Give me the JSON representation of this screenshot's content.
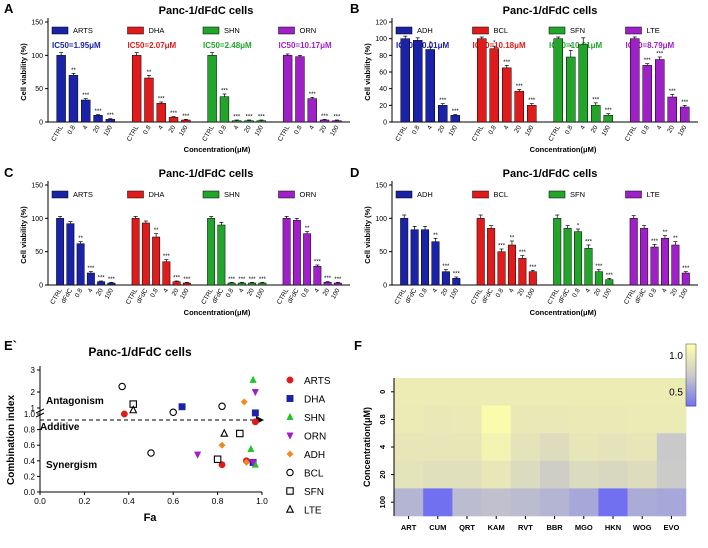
{
  "chart_data": [
    {
      "panel": "A",
      "type": "bar",
      "title": "Panc-1/dFdC cells",
      "ylabel": "Cell viability (%)",
      "xlabel": "Concentration(μM)",
      "ylim": [
        0,
        150
      ],
      "yticks": [
        0,
        50,
        100,
        150
      ],
      "groups": [
        {
          "name": "ARTS",
          "color": "#1a22a8",
          "ic50": "IC50=1.95μM",
          "categories": [
            "CTRL",
            "0.8",
            "4",
            "20",
            "100"
          ],
          "values": [
            100,
            70,
            33,
            10,
            4
          ],
          "errors": [
            4,
            3,
            2,
            1,
            1
          ],
          "sig": [
            "",
            "**",
            "***",
            "***",
            "***"
          ]
        },
        {
          "name": "DHA",
          "color": "#e01b1b",
          "ic50": "IC50=2.07μM",
          "categories": [
            "CTRL",
            "0.8",
            "4",
            "20",
            "100"
          ],
          "values": [
            100,
            66,
            28,
            7,
            3
          ],
          "errors": [
            4,
            4,
            2,
            1,
            1
          ],
          "sig": [
            "",
            "**",
            "***",
            "***",
            "***"
          ]
        },
        {
          "name": "SHN",
          "color": "#22a52a",
          "ic50": "IC50=2.48μM",
          "categories": [
            "CTRL",
            "0.8",
            "4",
            "20",
            "100"
          ],
          "values": [
            100,
            38,
            2,
            2,
            2
          ],
          "errors": [
            4,
            4,
            1,
            1,
            1
          ],
          "sig": [
            "",
            "***",
            "***",
            "***",
            "***"
          ]
        },
        {
          "name": "ORN",
          "color": "#a020c8",
          "ic50": "IC50=10.17μM",
          "categories": [
            "CTRL",
            "0.8",
            "4",
            "20",
            "100"
          ],
          "values": [
            100,
            98,
            35,
            3,
            2
          ],
          "errors": [
            2,
            2,
            2,
            1,
            1
          ],
          "sig": [
            "",
            "",
            "***",
            "***",
            "***"
          ]
        }
      ]
    },
    {
      "panel": "B",
      "type": "bar",
      "title": "Panc-1/dFdC cells",
      "ylabel": "Cell viability (%)",
      "xlabel": "Concentration(μM)",
      "ylim": [
        0,
        120
      ],
      "yticks": [
        0,
        20,
        40,
        60,
        80,
        100,
        120
      ],
      "groups": [
        {
          "name": "ADH",
          "color": "#1a22a8",
          "ic50": "IC50=10.01μM",
          "categories": [
            "CTRL",
            "0.8",
            "4",
            "20",
            "100"
          ],
          "values": [
            100,
            98,
            87,
            20,
            8
          ],
          "errors": [
            3,
            3,
            3,
            2,
            1
          ],
          "sig": [
            "",
            "",
            "*",
            "***",
            "***"
          ]
        },
        {
          "name": "BCL",
          "color": "#e01b1b",
          "ic50": "IC50=10.18μM",
          "categories": [
            "CTRL",
            "0.8",
            "4",
            "20",
            "100"
          ],
          "values": [
            100,
            88,
            65,
            37,
            20
          ],
          "errors": [
            2,
            3,
            3,
            2,
            2
          ],
          "sig": [
            "",
            "*",
            "***",
            "***",
            "***"
          ]
        },
        {
          "name": "SFN",
          "color": "#22a52a",
          "ic50": "IC50=10.91μM",
          "categories": [
            "CTRL",
            "0.8",
            "4",
            "20",
            "100"
          ],
          "values": [
            100,
            78,
            93,
            20,
            8
          ],
          "errors": [
            2,
            8,
            8,
            3,
            2
          ],
          "sig": [
            "",
            "*",
            "",
            "***",
            "***"
          ]
        },
        {
          "name": "LTE",
          "color": "#a020c8",
          "ic50": "IC50=8.79μM",
          "categories": [
            "CTRL",
            "0.8",
            "4",
            "20",
            "100"
          ],
          "values": [
            100,
            68,
            75,
            30,
            18
          ],
          "errors": [
            2,
            2,
            3,
            3,
            2
          ],
          "sig": [
            "",
            "***",
            "***",
            "***",
            "***"
          ]
        }
      ]
    },
    {
      "panel": "C",
      "type": "bar",
      "title": "Panc-1/dFdC cells",
      "ylabel": "Cell viability (%)",
      "xlabel": "Concentration(μM)",
      "ylim": [
        0,
        150
      ],
      "yticks": [
        0,
        50,
        100,
        150
      ],
      "groups": [
        {
          "name": "ARTS",
          "color": "#1a22a8",
          "categories": [
            "CTRL",
            "dFdC",
            "0.8",
            "4",
            "20",
            "100"
          ],
          "values": [
            100,
            92,
            62,
            18,
            5,
            3
          ],
          "errors": [
            3,
            3,
            3,
            2,
            1,
            1
          ],
          "sig": [
            "",
            "",
            "**",
            "***",
            "***",
            "***"
          ]
        },
        {
          "name": "DHA",
          "color": "#e01b1b",
          "categories": [
            "CTRL",
            "dFdC",
            "0.8",
            "4",
            "20",
            "100"
          ],
          "values": [
            100,
            93,
            72,
            35,
            5,
            3
          ],
          "errors": [
            3,
            3,
            5,
            3,
            1,
            1
          ],
          "sig": [
            "",
            "",
            "**",
            "***",
            "***",
            "***"
          ]
        },
        {
          "name": "SHN",
          "color": "#22a52a",
          "categories": [
            "CTRL",
            "dFdC",
            "0.8",
            "4",
            "20",
            "100"
          ],
          "values": [
            100,
            90,
            3,
            3,
            3,
            3
          ],
          "errors": [
            3,
            4,
            1,
            1,
            1,
            1
          ],
          "sig": [
            "",
            "",
            "***",
            "***",
            "***",
            "***"
          ]
        },
        {
          "name": "ORN",
          "color": "#a020c8",
          "categories": [
            "CTRL",
            "dFdC",
            "0.8",
            "4",
            "20",
            "100"
          ],
          "values": [
            100,
            97,
            77,
            28,
            4,
            3
          ],
          "errors": [
            3,
            3,
            3,
            2,
            1,
            1
          ],
          "sig": [
            "",
            "",
            "**",
            "***",
            "***",
            "***"
          ]
        }
      ]
    },
    {
      "panel": "D",
      "type": "bar",
      "title": "Panc-1/dFdC cells",
      "ylabel": "Cell viability (%)",
      "xlabel": "Concentration(μM)",
      "ylim": [
        0,
        150
      ],
      "yticks": [
        0,
        50,
        100,
        150
      ],
      "groups": [
        {
          "name": "ADH",
          "color": "#1a22a8",
          "categories": [
            "CTRL",
            "dFdC",
            "0.8",
            "4",
            "20",
            "100"
          ],
          "values": [
            100,
            83,
            83,
            65,
            20,
            10
          ],
          "errors": [
            5,
            5,
            5,
            5,
            3,
            2
          ],
          "sig": [
            "",
            "",
            "",
            "**",
            "***",
            "***"
          ]
        },
        {
          "name": "BCL",
          "color": "#e01b1b",
          "categories": [
            "CTRL",
            "dFdC",
            "0.8",
            "4",
            "20",
            "100"
          ],
          "values": [
            100,
            85,
            50,
            60,
            40,
            20
          ],
          "errors": [
            5,
            4,
            4,
            6,
            4,
            2
          ],
          "sig": [
            "",
            "",
            "***",
            "**",
            "***",
            "***"
          ]
        },
        {
          "name": "SFN",
          "color": "#22a52a",
          "categories": [
            "CTRL",
            "dFdC",
            "0.8",
            "4",
            "20",
            "100"
          ],
          "values": [
            100,
            85,
            80,
            55,
            20,
            8
          ],
          "errors": [
            5,
            4,
            4,
            5,
            3,
            2
          ],
          "sig": [
            "",
            "",
            "*",
            "***",
            "***",
            "***"
          ]
        },
        {
          "name": "LTE",
          "color": "#a020c8",
          "categories": [
            "CTRL",
            "dFdC",
            "0.8",
            "4",
            "20",
            "100"
          ],
          "values": [
            100,
            85,
            57,
            70,
            60,
            18
          ],
          "errors": [
            4,
            4,
            4,
            4,
            5,
            2
          ],
          "sig": [
            "",
            "",
            "***",
            "**",
            "**",
            "***"
          ]
        }
      ]
    },
    {
      "panel": "E`",
      "type": "scatter",
      "title": "Panc-1/dFdC cells",
      "xlabel": "Fa",
      "ylabel": "Combination index",
      "xlim": [
        0.0,
        1.0
      ],
      "ylim": [
        0,
        3
      ],
      "xticks": [
        "0.0",
        "0.2",
        "0.4",
        "0.6",
        "0.8",
        "1.0"
      ],
      "yticks": [
        "0.0",
        "0.2",
        "0.4",
        "0.6",
        "0.8",
        "1.0",
        "1",
        "2",
        "3"
      ],
      "annotations": [
        "Antagonism",
        "Additive",
        "Synergism"
      ],
      "series": [
        {
          "name": "ARTS",
          "marker": "circle",
          "color": "#e01b1b",
          "points": [
            [
              0.38,
              1.0
            ],
            [
              0.82,
              0.35
            ],
            [
              0.93,
              0.4
            ],
            [
              0.97,
              0.9
            ]
          ]
        },
        {
          "name": "DHA",
          "marker": "square",
          "color": "#1a22a8",
          "points": [
            [
              0.64,
              1.33
            ],
            [
              0.97,
              1.05
            ],
            [
              0.96,
              0.38
            ]
          ]
        },
        {
          "name": "SHN",
          "marker": "triangle",
          "color": "#22c42a",
          "points": [
            [
              0.96,
              2.55
            ],
            [
              0.97,
              0.35
            ],
            [
              0.95,
              0.55
            ]
          ]
        },
        {
          "name": "ORN",
          "marker": "triangle-down",
          "color": "#a020c8",
          "points": [
            [
              0.71,
              0.48
            ],
            [
              0.97,
              2.0
            ],
            [
              0.96,
              0.38
            ]
          ]
        },
        {
          "name": "ADH",
          "marker": "diamond",
          "color": "#f08a20",
          "points": [
            [
              0.92,
              1.55
            ],
            [
              0.82,
              0.6
            ],
            [
              0.93,
              0.38
            ]
          ]
        },
        {
          "name": "BCL",
          "marker": "circle-open",
          "color": "#000000",
          "points": [
            [
              0.37,
              2.25
            ],
            [
              0.6,
              1.08
            ],
            [
              0.5,
              0.5
            ],
            [
              0.82,
              1.35
            ]
          ]
        },
        {
          "name": "SFN",
          "marker": "square-open",
          "color": "#000000",
          "points": [
            [
              0.42,
              1.45
            ],
            [
              0.8,
              0.42
            ],
            [
              0.9,
              0.75
            ]
          ]
        },
        {
          "name": "LTE",
          "marker": "triangle-open",
          "color": "#000000",
          "points": [
            [
              0.42,
              1.18
            ],
            [
              0.83,
              0.75
            ]
          ]
        }
      ]
    },
    {
      "panel": "F",
      "type": "heatmap",
      "ylabel": "Concentration(μM)",
      "rows": [
        "0",
        "0.8",
        "4",
        "20",
        "100"
      ],
      "cols": [
        "ART",
        "CUM",
        "QRT",
        "KAM",
        "RVT",
        "BBR",
        "MGO",
        "HKN",
        "WOG",
        "EVO"
      ],
      "values": [
        [
          1.0,
          1.0,
          1.0,
          1.0,
          1.0,
          1.0,
          1.0,
          1.0,
          1.0,
          1.0
        ],
        [
          0.99,
          0.97,
          0.98,
          1.12,
          0.97,
          0.97,
          0.98,
          0.98,
          0.99,
          0.99
        ],
        [
          0.95,
          0.95,
          0.95,
          1.05,
          0.93,
          0.88,
          0.95,
          0.93,
          0.95,
          0.72
        ],
        [
          0.93,
          0.9,
          0.9,
          0.96,
          0.86,
          0.76,
          0.86,
          0.84,
          0.88,
          0.73
        ],
        [
          0.62,
          0.3,
          0.66,
          0.68,
          0.66,
          0.62,
          0.56,
          0.3,
          0.58,
          0.56
        ]
      ],
      "colorbar": {
        "min": 0.3,
        "max": 1.15,
        "ticks": [
          "0.5",
          "1.0"
        ],
        "low_color": "#7070f0",
        "mid_color": "#cacaca",
        "high_color": "#ffffaa"
      }
    }
  ]
}
